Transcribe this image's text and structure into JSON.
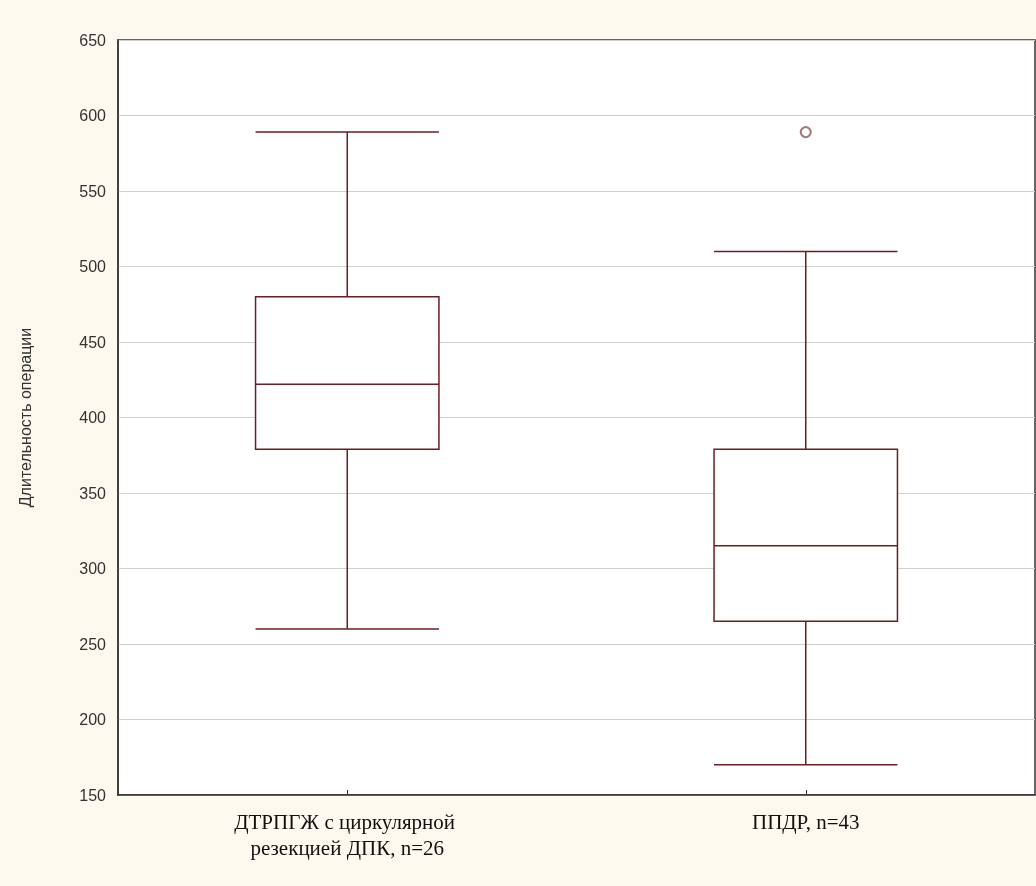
{
  "chart_data": {
    "type": "box",
    "categories": [
      "ДТРПГЖ с циркулярной резекцией ДПК, n=26",
      "ППДР, n=43"
    ],
    "boxes": [
      {
        "low": 260,
        "q1": 379,
        "median": 422,
        "q3": 480,
        "high": 589
      },
      {
        "low": 170,
        "q1": 265,
        "median": 315,
        "q3": 379,
        "high": 510,
        "outliers": [
          589
        ]
      }
    ],
    "color": "#6b1f24",
    "ylabel": "Длительность операции",
    "ylim": [
      150,
      650
    ],
    "yticks": [
      150,
      200,
      250,
      300,
      350,
      400,
      450,
      500,
      550,
      600,
      650
    ],
    "grid": "y"
  }
}
